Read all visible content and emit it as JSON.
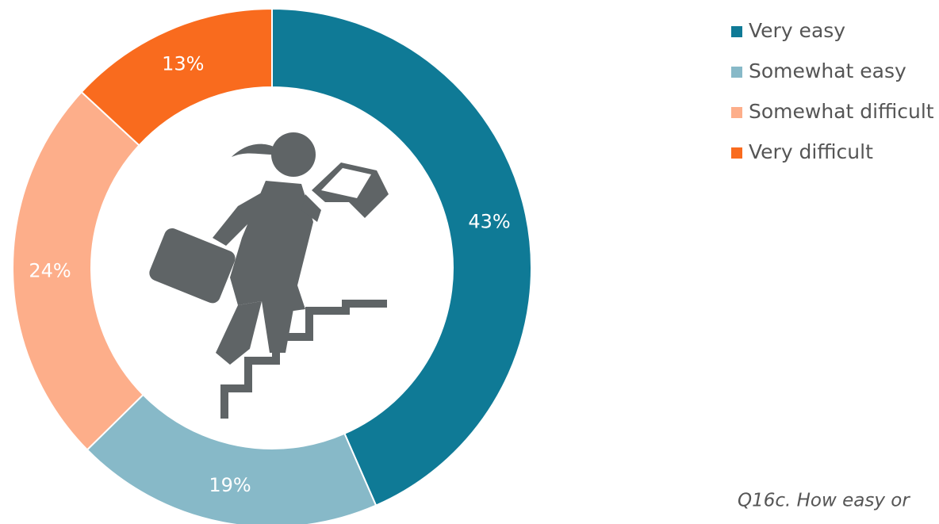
{
  "chart_data": {
    "type": "donut",
    "categories": [
      "Very easy",
      "Somewhat easy",
      "Somewhat difficult",
      "Very difficult"
    ],
    "values": [
      43,
      19,
      24,
      13
    ],
    "value_labels": [
      "43%",
      "19%",
      "24%",
      "13%"
    ],
    "colors": [
      "#0f7a96",
      "#87b9c8",
      "#fdae8a",
      "#f96b1e"
    ],
    "annotation": "Q16c.  How easy or"
  }
}
